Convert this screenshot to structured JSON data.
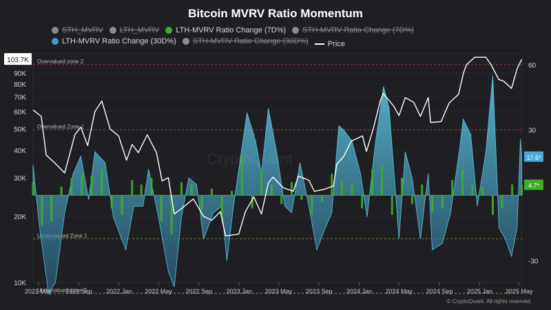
{
  "title": "Bitcoin MVRV Ratio Momentum",
  "legend": [
    {
      "label": "STH_MVRV",
      "color": "#8c8c8c",
      "active": false,
      "marker": "dot"
    },
    {
      "label": "LTH_MVRV",
      "color": "#8c8c8c",
      "active": false,
      "marker": "dot"
    },
    {
      "label": "LTH-MVRV Ratio Change (7D%)",
      "color": "#3fae2a",
      "active": true,
      "marker": "dot"
    },
    {
      "label": "STH-MVRV Ratio Change (7D%)",
      "color": "#8c8c8c",
      "active": false,
      "marker": "dot"
    },
    {
      "label": "LTH-MVRV Ratio Change (30D%)",
      "color": "#3c9ec8",
      "active": true,
      "marker": "dot"
    },
    {
      "label": "STH-MVRV Ratio Change (30D%)",
      "color": "#8c8c8c",
      "active": false,
      "marker": "dot"
    },
    {
      "label": "Price",
      "color": "#ffffff",
      "active": true,
      "marker": "line"
    }
  ],
  "credit": "© CryptoQuant. All rights reserved",
  "watermark": "CryptoQuant",
  "colors": {
    "background": "#1f1f23",
    "price": "#ffffff",
    "lth_7d": "#3fae2a",
    "lth_30d": "#5fc6e0",
    "zone_over": "#c0504d",
    "zone_under": "#9abf4a",
    "grid": "#2c2c31"
  },
  "chart_data": {
    "type": "line",
    "x_axis": {
      "ticks": [
        "2021 May",
        "2021 Sep",
        "2022 Jan",
        "2022 May",
        "2022 Sep",
        "2023 Jan",
        "2023 May",
        "2023 Sep",
        "2024 Jan",
        "2024 May",
        "2024 Sep",
        "2025 Jan",
        "2025 May"
      ],
      "range": [
        "2021-04-15",
        "2025-05-10"
      ]
    },
    "y_left": {
      "scale": "log",
      "range": [
        10000,
        110000
      ],
      "tick_labels": [
        {
          "label": "10K",
          "value": 10000
        },
        {
          "label": "20K",
          "value": 20000
        },
        {
          "label": "30K",
          "value": 30000
        },
        {
          "label": "40K",
          "value": 40000
        },
        {
          "label": "50K",
          "value": 50000
        },
        {
          "label": "60K",
          "value": 60000
        },
        {
          "label": "70K",
          "value": 70000
        },
        {
          "label": "80K",
          "value": 80000
        },
        {
          "label": "90K",
          "value": 90000
        }
      ],
      "current_label": "103.7K",
      "current_value": 103700
    },
    "y_right": {
      "scale": "linear",
      "range": [
        -40,
        65
      ],
      "tick_labels": [
        "60",
        "30",
        "-30"
      ],
      "tick_values": [
        60,
        30,
        -30
      ]
    },
    "zones": [
      {
        "label": "Overvalued zone 2",
        "y": 60,
        "color": "#c0504d"
      },
      {
        "label": "Overvalued Zone 1",
        "y": 30,
        "color": "#c0504d"
      },
      {
        "label": "Undervalued Zone 1",
        "y": -20,
        "color": "#9abf4a"
      },
      {
        "label": "Undervalued zone 2",
        "y": -45,
        "color": "#9abf4a"
      }
    ],
    "value_badges": [
      {
        "label": "17.6*",
        "value": 17.6,
        "color": "#4aa9d6"
      },
      {
        "label": "4.7*",
        "value": 4.7,
        "color": "#3fae2a"
      }
    ],
    "series": [
      {
        "name": "Price",
        "axis": "left",
        "style": "line",
        "x": [
          "2021-04-15",
          "2021-05-10",
          "2021-05-25",
          "2021-06-20",
          "2021-07-20",
          "2021-08-20",
          "2021-09-07",
          "2021-09-28",
          "2021-10-20",
          "2021-11-10",
          "2021-12-05",
          "2021-12-31",
          "2022-01-24",
          "2022-02-10",
          "2022-03-01",
          "2022-03-28",
          "2022-04-25",
          "2022-05-12",
          "2022-05-31",
          "2022-06-18",
          "2022-07-15",
          "2022-08-15",
          "2022-09-15",
          "2022-10-10",
          "2022-11-05",
          "2022-11-21",
          "2022-12-31",
          "2023-01-20",
          "2023-02-15",
          "2023-03-10",
          "2023-03-31",
          "2023-04-14",
          "2023-05-15",
          "2023-06-15",
          "2023-06-30",
          "2023-08-01",
          "2023-08-18",
          "2023-09-15",
          "2023-10-15",
          "2023-10-25",
          "2023-11-15",
          "2023-12-08",
          "2024-01-11",
          "2024-01-23",
          "2024-02-15",
          "2024-03-05",
          "2024-03-14",
          "2024-04-15",
          "2024-05-01",
          "2024-05-20",
          "2024-06-15",
          "2024-07-05",
          "2024-07-29",
          "2024-08-05",
          "2024-09-06",
          "2024-09-30",
          "2024-10-29",
          "2024-11-13",
          "2024-11-22",
          "2024-12-17",
          "2025-01-20",
          "2025-02-05",
          "2025-02-28",
          "2025-03-15",
          "2025-04-08",
          "2025-04-25",
          "2025-05-09"
        ],
        "y": [
          61000,
          57000,
          38000,
          35000,
          31500,
          47000,
          51000,
          42000,
          60000,
          67000,
          50000,
          46500,
          36000,
          42500,
          39000,
          47000,
          39000,
          29000,
          30000,
          20500,
          22000,
          24000,
          20000,
          19200,
          21000,
          16300,
          16600,
          21000,
          24500,
          20500,
          28400,
          30200,
          27000,
          26000,
          30500,
          29200,
          26000,
          26500,
          27500,
          34500,
          37500,
          44000,
          46500,
          39500,
          51500,
          67000,
          72500,
          63500,
          57500,
          69500,
          66000,
          57000,
          69500,
          53500,
          54000,
          65500,
          72000,
          90000,
          98000,
          106000,
          106000,
          98000,
          84000,
          82500,
          76500,
          94000,
          103700
        ]
      },
      {
        "name": "LTH-MVRV Ratio Change (30D%)",
        "axis": "right",
        "style": "area",
        "x": [
          "2021-04-15",
          "2021-05-05",
          "2021-06-01",
          "2021-06-22",
          "2021-07-20",
          "2021-08-15",
          "2021-09-07",
          "2021-10-01",
          "2021-10-20",
          "2021-11-20",
          "2021-12-15",
          "2022-01-22",
          "2022-02-15",
          "2022-03-15",
          "2022-04-01",
          "2022-05-01",
          "2022-05-31",
          "2022-06-18",
          "2022-07-10",
          "2022-08-01",
          "2022-08-25",
          "2022-09-15",
          "2022-10-15",
          "2022-11-09",
          "2022-11-25",
          "2022-12-15",
          "2023-01-25",
          "2023-02-20",
          "2023-03-10",
          "2023-03-31",
          "2023-04-25",
          "2023-05-20",
          "2023-06-10",
          "2023-07-05",
          "2023-08-01",
          "2023-08-25",
          "2023-09-20",
          "2023-10-10",
          "2023-10-31",
          "2023-11-15",
          "2023-12-10",
          "2024-01-05",
          "2024-01-25",
          "2024-02-20",
          "2024-03-15",
          "2024-04-01",
          "2024-05-01",
          "2024-05-20",
          "2024-06-10",
          "2024-07-05",
          "2024-07-29",
          "2024-08-10",
          "2024-09-10",
          "2024-10-05",
          "2024-10-31",
          "2024-11-12",
          "2024-12-05",
          "2024-12-25",
          "2025-01-20",
          "2025-02-10",
          "2025-03-01",
          "2025-03-20",
          "2025-04-08",
          "2025-04-25",
          "2025-05-05",
          "2025-05-09"
        ],
        "y": [
          14,
          -15,
          -45,
          -40,
          -8,
          10,
          18,
          -2,
          20,
          15,
          -10,
          -25,
          -5,
          -5,
          12,
          -10,
          -35,
          -42,
          -10,
          8,
          5,
          -20,
          -8,
          -5,
          -30,
          -5,
          38,
          25,
          10,
          40,
          20,
          -5,
          -8,
          15,
          -5,
          -25,
          -15,
          -8,
          32,
          30,
          25,
          10,
          -10,
          25,
          50,
          40,
          -20,
          20,
          8,
          -20,
          10,
          -25,
          -22,
          -8,
          20,
          35,
          28,
          -5,
          20,
          55,
          -15,
          -20,
          -28,
          -15,
          26,
          17.6
        ]
      },
      {
        "name": "LTH-MVRV Ratio Change (7D%)",
        "axis": "right",
        "style": "bars",
        "x": [
          "2021-04-15",
          "2021-05-12",
          "2021-06-10",
          "2021-07-10",
          "2021-08-10",
          "2021-09-10",
          "2021-10-10",
          "2021-11-10",
          "2021-12-10",
          "2022-01-10",
          "2022-02-10",
          "2022-03-10",
          "2022-04-10",
          "2022-05-10",
          "2022-06-10",
          "2022-07-10",
          "2022-08-10",
          "2022-09-10",
          "2022-10-10",
          "2022-11-10",
          "2022-12-10",
          "2023-01-10",
          "2023-02-10",
          "2023-03-10",
          "2023-04-10",
          "2023-05-10",
          "2023-06-10",
          "2023-07-10",
          "2023-08-10",
          "2023-09-10",
          "2023-10-10",
          "2023-11-10",
          "2023-12-10",
          "2024-01-10",
          "2024-02-10",
          "2024-03-10",
          "2024-04-10",
          "2024-05-10",
          "2024-06-10",
          "2024-07-10",
          "2024-08-10",
          "2024-09-10",
          "2024-10-10",
          "2024-11-10",
          "2024-12-10",
          "2025-01-10",
          "2025-02-10",
          "2025-03-10",
          "2025-04-10",
          "2025-05-09"
        ],
        "y": [
          6,
          -14,
          -12,
          4,
          8,
          10,
          9,
          12,
          -6,
          -9,
          7,
          5,
          8,
          -12,
          -18,
          6,
          5,
          -7,
          3,
          -10,
          2,
          18,
          -6,
          12,
          5,
          -4,
          6,
          -2,
          -9,
          -3,
          10,
          7,
          5,
          -6,
          12,
          14,
          -9,
          8,
          -4,
          5,
          -8,
          -6,
          7,
          12,
          5,
          4,
          -9,
          -6,
          5,
          4.7
        ]
      }
    ]
  }
}
